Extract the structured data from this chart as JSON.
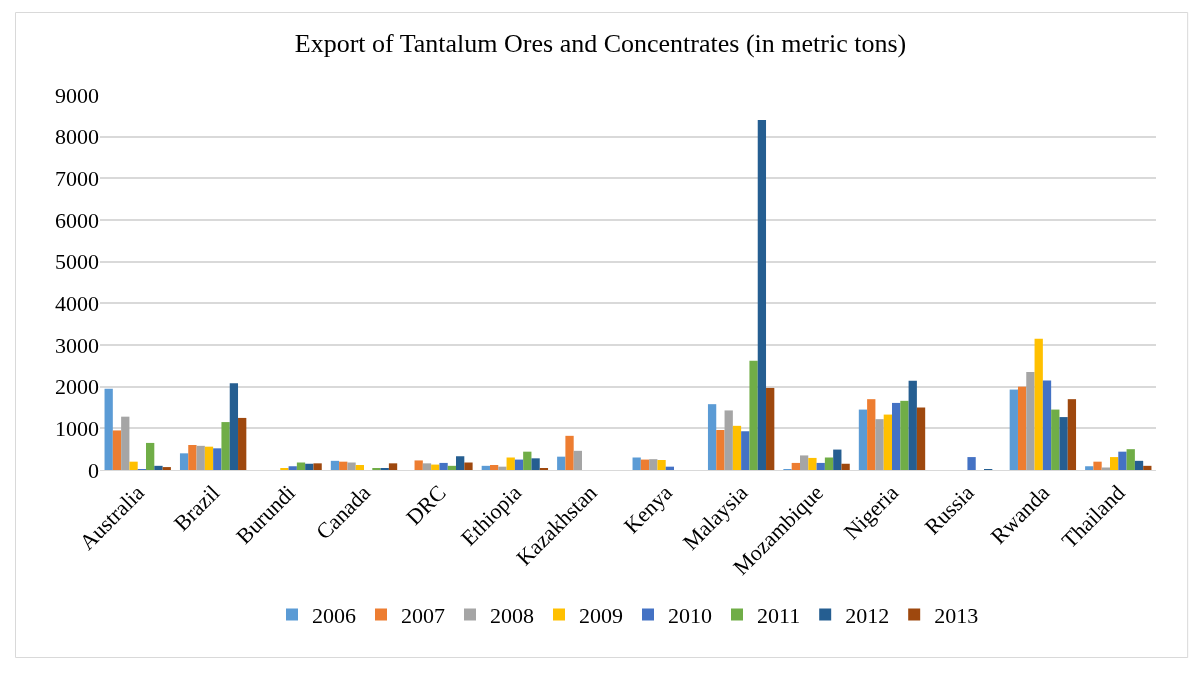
{
  "chart_data": {
    "type": "bar",
    "title": "Export of Tantalum Ores and Concentrates (in metric tons)",
    "categories": [
      "Australia",
      "Brazil",
      "Burundi",
      "Canada",
      "DRC",
      "Ethiopia",
      "Kazakhstan",
      "Kenya",
      "Malaysia",
      "Mozambique",
      "Nigeria",
      "Russia",
      "Rwanda",
      "Thailand"
    ],
    "series": [
      {
        "name": "2006",
        "color": "#5b9bd5",
        "values": [
          1950,
          400,
          0,
          220,
          0,
          100,
          320,
          300,
          1580,
          20,
          1450,
          0,
          1930,
          90
        ]
      },
      {
        "name": "2007",
        "color": "#ed7d31",
        "values": [
          950,
          600,
          0,
          200,
          230,
          120,
          820,
          250,
          960,
          170,
          1700,
          0,
          2000,
          200
        ]
      },
      {
        "name": "2008",
        "color": "#a5a5a5",
        "values": [
          1280,
          580,
          0,
          180,
          160,
          80,
          460,
          260,
          1430,
          350,
          1220,
          0,
          2350,
          60
        ]
      },
      {
        "name": "2009",
        "color": "#ffc000",
        "values": [
          200,
          560,
          40,
          120,
          130,
          300,
          0,
          240,
          1060,
          290,
          1330,
          0,
          3150,
          310
        ]
      },
      {
        "name": "2010",
        "color": "#4472c4",
        "values": [
          20,
          520,
          90,
          0,
          170,
          250,
          0,
          80,
          930,
          170,
          1610,
          310,
          2150,
          440
        ]
      },
      {
        "name": "2011",
        "color": "#70ad47",
        "values": [
          650,
          1150,
          180,
          40,
          100,
          440,
          0,
          0,
          2620,
          300,
          1660,
          0,
          1450,
          500
        ]
      },
      {
        "name": "2012",
        "color": "#255e91",
        "values": [
          100,
          2080,
          150,
          40,
          330,
          280,
          0,
          0,
          8400,
          490,
          2140,
          20,
          1270,
          220
        ]
      },
      {
        "name": "2013",
        "color": "#9e480e",
        "values": [
          70,
          1250,
          160,
          160,
          180,
          30,
          0,
          0,
          1970,
          150,
          1500,
          0,
          1700,
          100
        ]
      }
    ],
    "ylim": [
      0,
      9000
    ],
    "yticks": [
      0,
      1000,
      2000,
      3000,
      4000,
      5000,
      6000,
      7000,
      8000,
      9000
    ],
    "grid": "y",
    "legend": "bottom"
  }
}
